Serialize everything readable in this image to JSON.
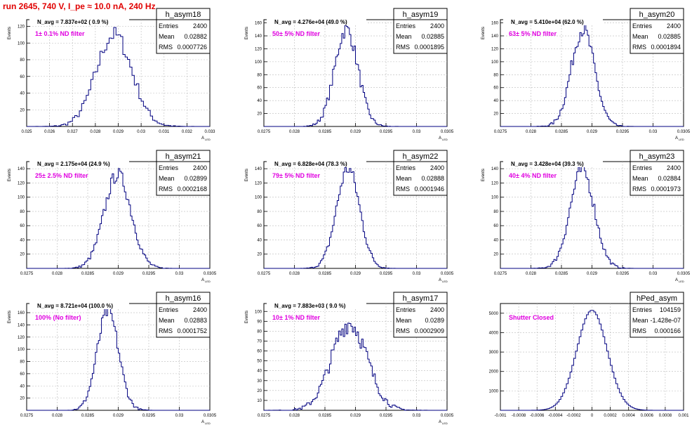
{
  "page_title": "run 2645,   740 V, I_pe ≈ 10.0 nA, 240 Hz",
  "colors": {
    "histogram": "#000080",
    "annotation": "#e000e0",
    "title": "#e00000",
    "grid": "#bbbbbb"
  },
  "stat_labels": {
    "entries": "Entries",
    "mean": "Mean",
    "rms": "RMS"
  },
  "chart_data": [
    {
      "type": "histogram",
      "name": "h_asym18",
      "navg": "N_avg = 7.837e+02 ( 0.9 %)",
      "filter": "1± 0.1% ND filter",
      "entries": "2400",
      "mean": "0.02882",
      "rms": "0.0007726",
      "xlabel": "A",
      "xsub": "LED",
      "ylabel": "Events",
      "xlim": [
        0.025,
        0.033
      ],
      "ylim": [
        0,
        128
      ],
      "xticks": [
        "0.025",
        "0.026",
        "0.027",
        "0.028",
        "0.029",
        "0.03",
        "0.031",
        "0.032",
        "0.033"
      ],
      "yticks": [
        "20",
        "40",
        "60",
        "80",
        "100",
        "120"
      ],
      "center": 0.02882,
      "sigma": 0.00078,
      "peak": 110,
      "jitter": 10,
      "bins": 80
    },
    {
      "type": "histogram",
      "name": "h_asym19",
      "navg": "N_avg = 4.276e+04 (49.0 %)",
      "filter": "50± 5% ND filter",
      "entries": "2400",
      "mean": "0.02885",
      "rms": "0.0001895",
      "xlabel": "A",
      "xsub": "LED",
      "ylabel": "Events",
      "xlim": [
        0.0275,
        0.0305
      ],
      "ylim": [
        0,
        165
      ],
      "xticks": [
        "0.0275",
        "0.028",
        "0.0285",
        "0.029",
        "0.0295",
        "0.03",
        "0.0305"
      ],
      "yticks": [
        "20",
        "40",
        "60",
        "80",
        "100",
        "120",
        "140",
        "160"
      ],
      "center": 0.02885,
      "sigma": 0.00019,
      "peak": 150,
      "jitter": 12,
      "bins": 120
    },
    {
      "type": "histogram",
      "name": "h_asym20",
      "navg": "N_avg = 5.410e+04 (62.0 %)",
      "filter": "63± 5% ND filter",
      "entries": "2400",
      "mean": "0.02885",
      "rms": "0.0001894",
      "xlabel": "A",
      "xsub": "LED",
      "ylabel": "Events",
      "xlim": [
        0.0275,
        0.0305
      ],
      "ylim": [
        0,
        165
      ],
      "xticks": [
        "0.0275",
        "0.028",
        "0.0285",
        "0.029",
        "0.0295",
        "0.03",
        "0.0305"
      ],
      "yticks": [
        "20",
        "40",
        "60",
        "80",
        "100",
        "120",
        "140",
        "160"
      ],
      "center": 0.02885,
      "sigma": 0.00019,
      "peak": 150,
      "jitter": 12,
      "bins": 120
    },
    {
      "type": "histogram",
      "name": "h_asym21",
      "navg": "N_avg = 2.175e+04 (24.9 %)",
      "filter": "25± 2.5% ND filter",
      "entries": "2400",
      "mean": "0.02899",
      "rms": "0.0002168",
      "xlabel": "A",
      "xsub": "LED",
      "ylabel": "Events",
      "xlim": [
        0.0275,
        0.0305
      ],
      "ylim": [
        0,
        150
      ],
      "xticks": [
        "0.0275",
        "0.028",
        "0.0285",
        "0.029",
        "0.0295",
        "0.03",
        "0.0305"
      ],
      "yticks": [
        "20",
        "40",
        "60",
        "80",
        "100",
        "120",
        "140"
      ],
      "center": 0.02899,
      "sigma": 0.00022,
      "peak": 132,
      "jitter": 10,
      "bins": 120
    },
    {
      "type": "histogram",
      "name": "h_asym22",
      "navg": "N_avg = 6.828e+04 (78.3 %)",
      "filter": "79± 5% ND filter",
      "entries": "2400",
      "mean": "0.02888",
      "rms": "0.0001946",
      "xlabel": "A",
      "xsub": "LED",
      "ylabel": "Events",
      "xlim": [
        0.0275,
        0.0305
      ],
      "ylim": [
        0,
        150
      ],
      "xticks": [
        "0.0275",
        "0.028",
        "0.0285",
        "0.029",
        "0.0295",
        "0.03",
        "0.0305"
      ],
      "yticks": [
        "20",
        "40",
        "60",
        "80",
        "100",
        "120",
        "140"
      ],
      "center": 0.02888,
      "sigma": 0.00019,
      "peak": 140,
      "jitter": 10,
      "bins": 120
    },
    {
      "type": "histogram",
      "name": "h_asym23",
      "navg": "N_avg = 3.428e+04 (39.3 %)",
      "filter": "40± 4% ND filter",
      "entries": "2400",
      "mean": "0.02884",
      "rms": "0.0001973",
      "xlabel": "A",
      "xsub": "LED",
      "ylabel": "Events",
      "xlim": [
        0.0275,
        0.0305
      ],
      "ylim": [
        0,
        150
      ],
      "xticks": [
        "0.0275",
        "0.028",
        "0.0285",
        "0.029",
        "0.0295",
        "0.03",
        "0.0305"
      ],
      "yticks": [
        "20",
        "40",
        "60",
        "80",
        "100",
        "120",
        "140"
      ],
      "center": 0.02884,
      "sigma": 0.0002,
      "peak": 138,
      "jitter": 10,
      "bins": 120
    },
    {
      "type": "histogram",
      "name": "h_asym16",
      "navg": "N_avg = 8.721e+04 (100.0 %)",
      "filter": "100% (No filter)",
      "entries": "2400",
      "mean": "0.02883",
      "rms": "0.0001752",
      "xlabel": "A",
      "xsub": "LED",
      "ylabel": "Events",
      "xlim": [
        0.0275,
        0.0305
      ],
      "ylim": [
        0,
        175
      ],
      "xticks": [
        "0.0275",
        "0.028",
        "0.0285",
        "0.029",
        "0.0295",
        "0.03",
        "0.0305"
      ],
      "yticks": [
        "20",
        "40",
        "60",
        "80",
        "100",
        "120",
        "140",
        "160"
      ],
      "center": 0.02883,
      "sigma": 0.000175,
      "peak": 162,
      "jitter": 12,
      "bins": 120
    },
    {
      "type": "histogram",
      "name": "h_asym17",
      "navg": "N_avg = 7.883e+03 ( 9.0 %)",
      "filter": "10± 1% ND filter",
      "entries": "2400",
      "mean": "0.0289",
      "rms": "0.0002909",
      "xlabel": "A",
      "xsub": "LED",
      "ylabel": "Events",
      "xlim": [
        0.0275,
        0.0305
      ],
      "ylim": [
        0,
        108
      ],
      "xticks": [
        "0.0275",
        "0.028",
        "0.0285",
        "0.029",
        "0.0295",
        "0.03",
        "0.0305"
      ],
      "yticks": [
        "10",
        "20",
        "30",
        "40",
        "50",
        "60",
        "70",
        "80",
        "90",
        "100"
      ],
      "center": 0.0289,
      "sigma": 0.00029,
      "peak": 88,
      "jitter": 10,
      "bins": 120
    },
    {
      "type": "histogram",
      "name": "hPed_asym",
      "navg": "",
      "filter": "Shutter Closed",
      "entries": "104159",
      "mean": "-1.428e-07",
      "rms": "0.000166",
      "xlabel": "",
      "xsub": "",
      "ylabel": "",
      "xlim": [
        -0.001,
        0.001
      ],
      "ylim": [
        0,
        5500
      ],
      "xticks": [
        "-0.001",
        "-0.0008",
        "-0.0006",
        "-0.0004",
        "-0.0002",
        "0",
        "0.0002",
        "0.0004",
        "0.0006",
        "0.0008",
        "0.001"
      ],
      "yticks": [
        "1000",
        "2000",
        "3000",
        "4000",
        "5000"
      ],
      "center": 0.0,
      "sigma": 0.000166,
      "peak": 5150,
      "jitter": 0,
      "bins": 100
    }
  ]
}
